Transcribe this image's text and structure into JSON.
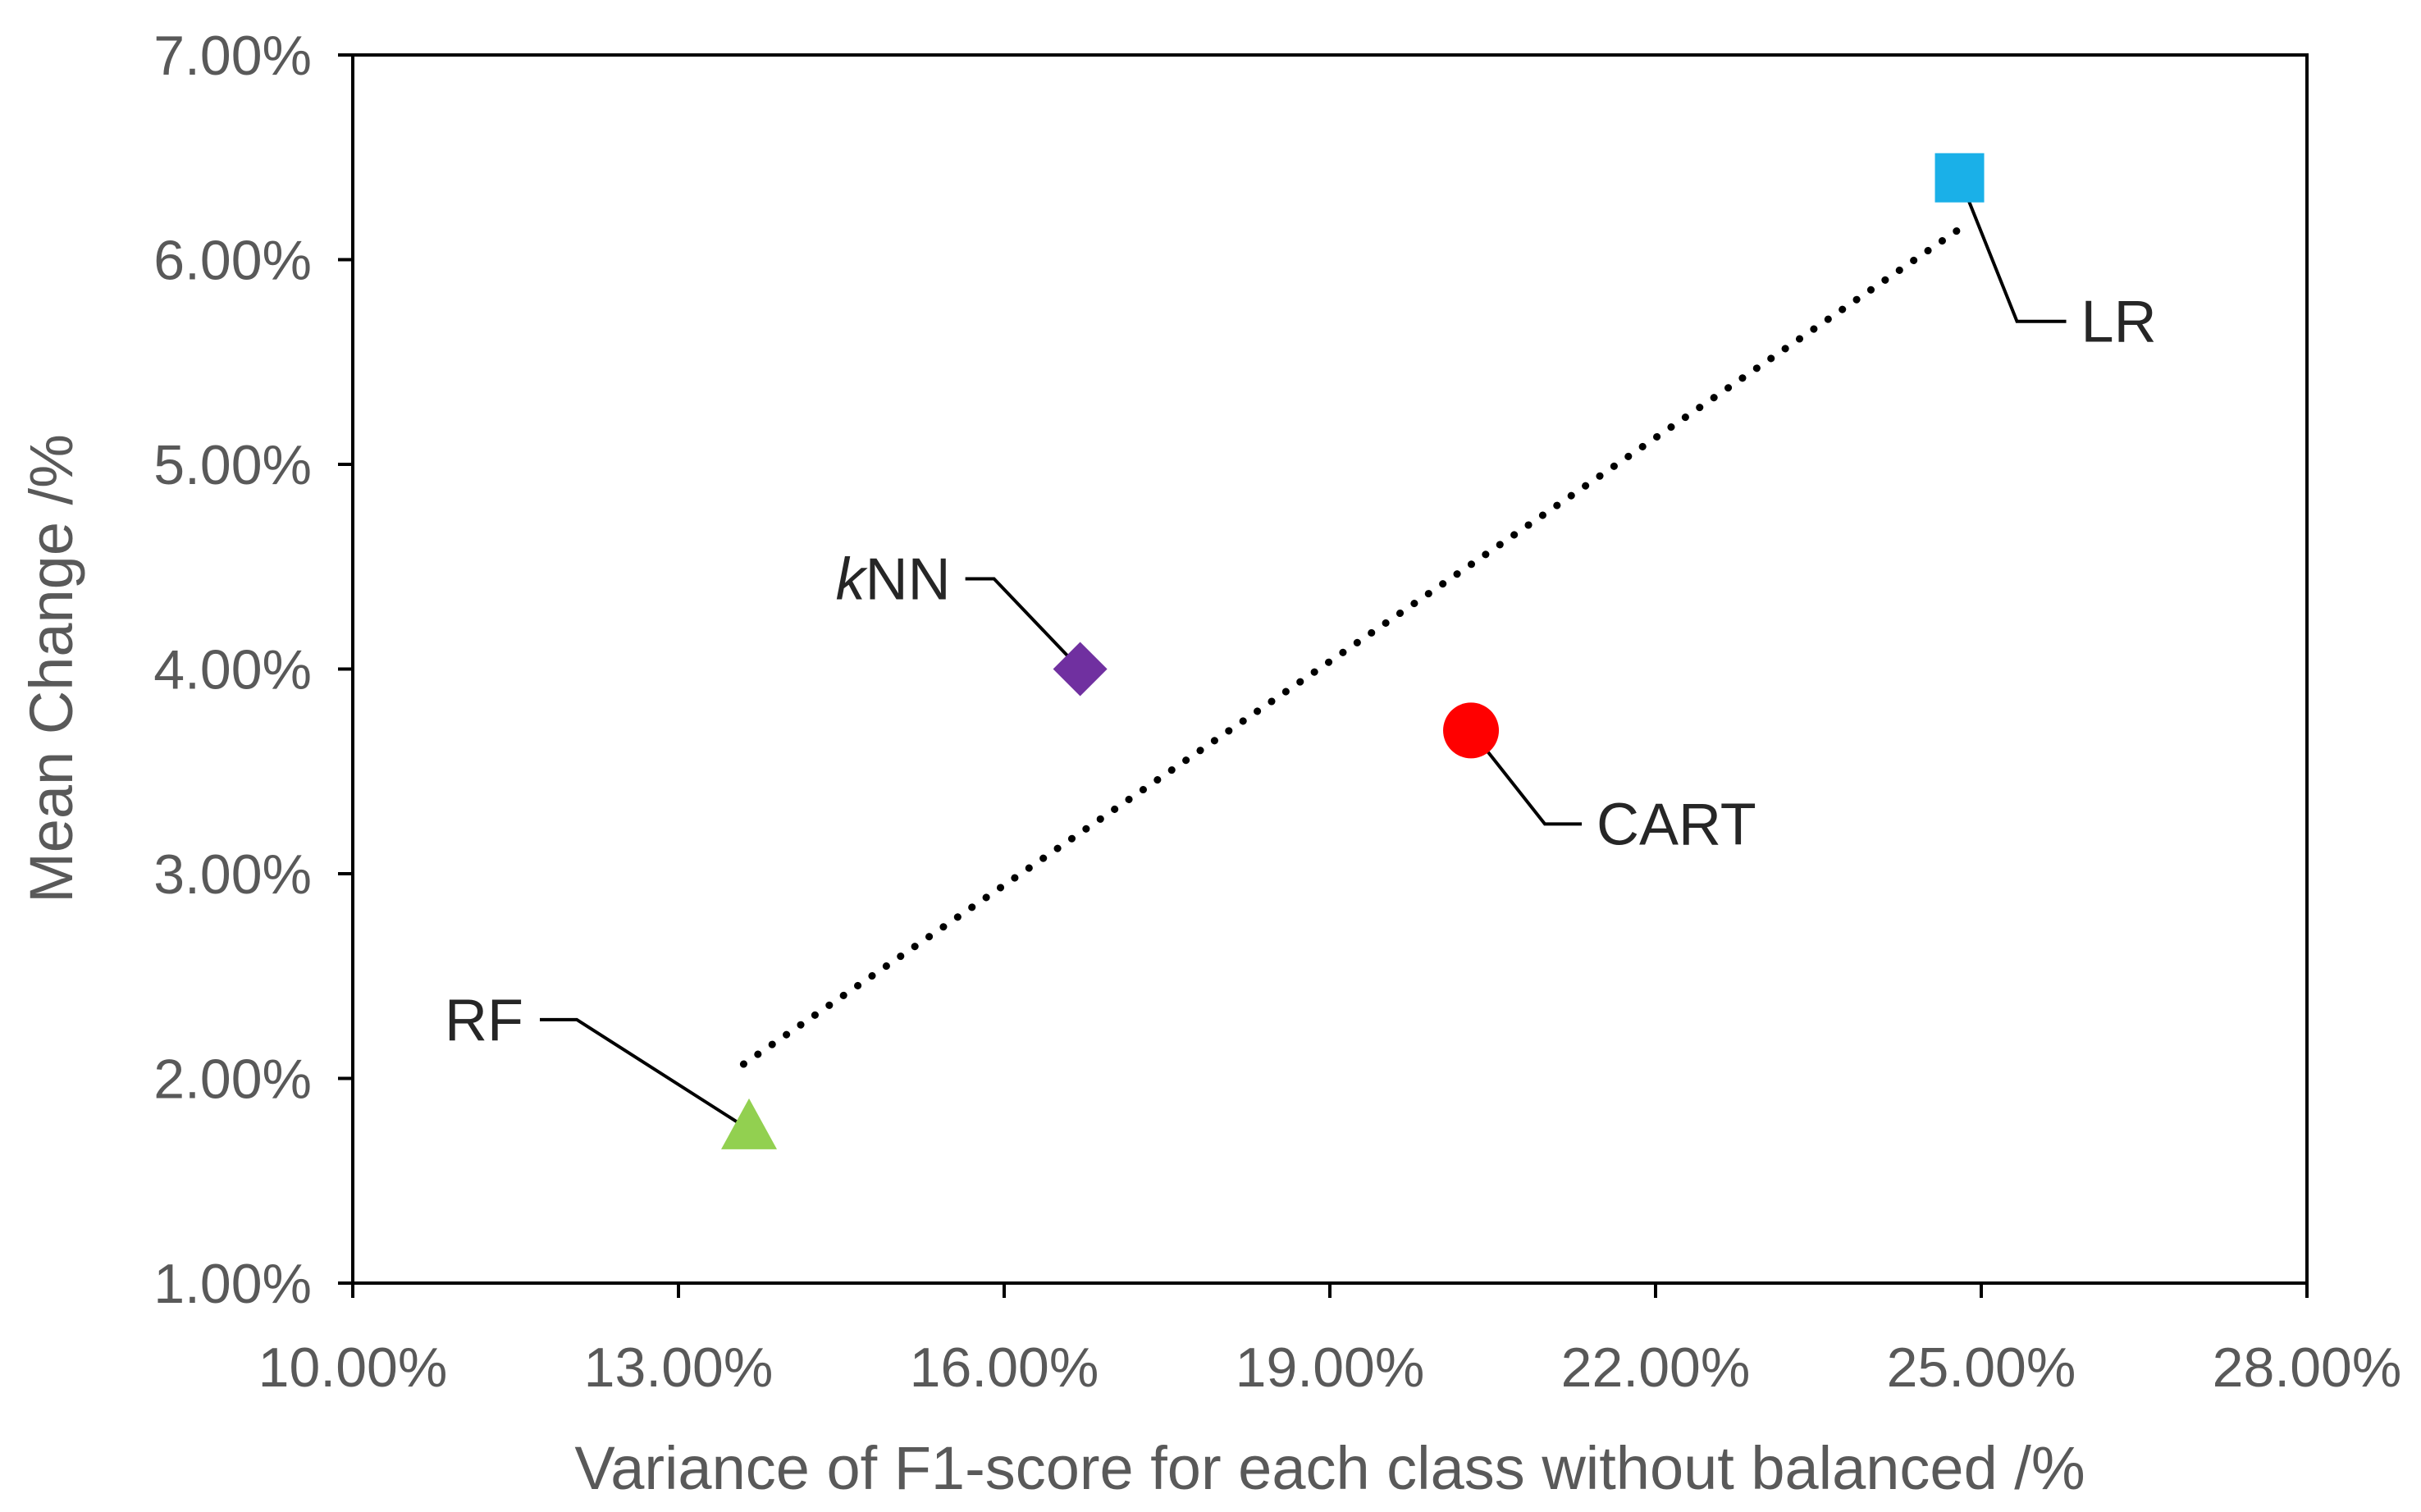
{
  "chart_data": {
    "type": "scatter",
    "title": "",
    "xlabel": "Variance of F1-score for each class without balanced /%",
    "ylabel": "Mean Change /%",
    "xlim": [
      10,
      28
    ],
    "ylim": [
      1,
      7
    ],
    "x_ticks": [
      10,
      13,
      16,
      19,
      22,
      25,
      28
    ],
    "y_ticks": [
      1,
      2,
      3,
      4,
      5,
      6,
      7
    ],
    "x_tick_labels": [
      "10.00%",
      "13.00%",
      "16.00%",
      "19.00%",
      "22.00%",
      "25.00%",
      "28.00%"
    ],
    "y_tick_labels": [
      "1.00%",
      "2.00%",
      "3.00%",
      "4.00%",
      "5.00%",
      "6.00%",
      "7.00%"
    ],
    "grid": false,
    "legend": "none",
    "points": [
      {
        "name": "LR",
        "label_prefix": "",
        "label_main": "LR",
        "x": 24.8,
        "y": 6.4,
        "marker": "square",
        "color": "#1ab0e8"
      },
      {
        "name": "kNN",
        "label_prefix": "k",
        "label_main": "NN",
        "x": 16.7,
        "y": 4.0,
        "marker": "diamond",
        "color": "#7030a0"
      },
      {
        "name": "CART",
        "label_prefix": "",
        "label_main": "CART",
        "x": 20.3,
        "y": 3.7,
        "marker": "circle",
        "color": "#ff0000"
      },
      {
        "name": "RF",
        "label_prefix": "",
        "label_main": "RF",
        "x": 13.65,
        "y": 1.75,
        "marker": "triangle",
        "color": "#92d050"
      }
    ],
    "trendline": {
      "style": "dotted",
      "color": "#000000",
      "x": [
        13.6,
        24.8
      ],
      "y": [
        2.07,
        6.15
      ]
    }
  }
}
